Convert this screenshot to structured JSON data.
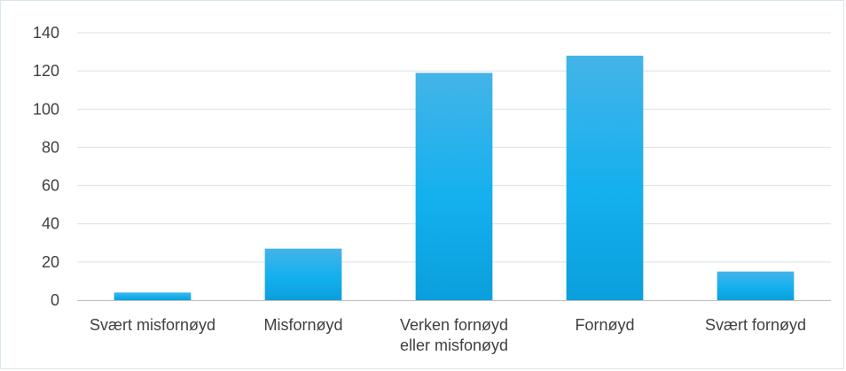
{
  "chart_data": {
    "type": "bar",
    "categories": [
      "Svært misfornøyd",
      "Misfornøyd",
      "Verken fornøyd eller misfonøyd",
      "Fornøyd",
      "Svært fornøyd"
    ],
    "category_lines": [
      [
        "Svært misfornøyd"
      ],
      [
        "Misfornøyd"
      ],
      [
        "Verken fornøyd",
        "eller misfonøyd"
      ],
      [
        "Fornøyd"
      ],
      [
        "Svært fornøyd"
      ]
    ],
    "values": [
      4,
      27,
      119,
      128,
      15
    ],
    "ylim": [
      0,
      140
    ],
    "yticks": [
      0,
      20,
      40,
      60,
      80,
      100,
      120,
      140
    ],
    "title": "",
    "xlabel": "",
    "ylabel": "",
    "grid": true,
    "legend": "none",
    "colors": {
      "bar_top": "#44b4e8",
      "bar_mid": "#14b0ef",
      "bar_bottom": "#0a9fdc",
      "grid": "#d9e2e8",
      "axis": "#bfbfbf",
      "text": "#404040"
    }
  }
}
